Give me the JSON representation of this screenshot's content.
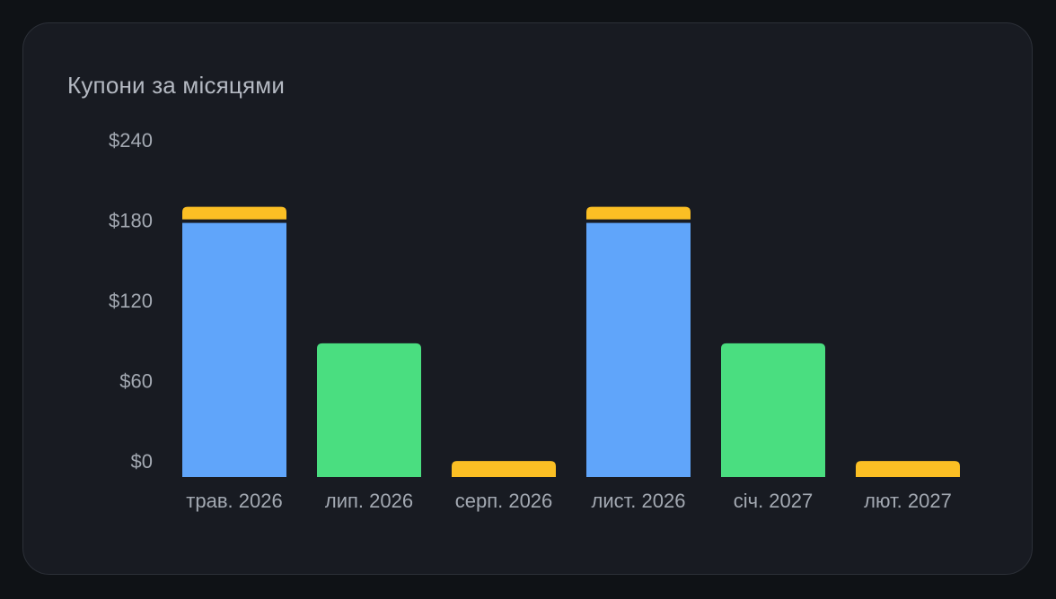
{
  "card": {
    "title": "Купони за місяцями"
  },
  "colors": {
    "background": "#0f1216",
    "card": "#181b22",
    "series_blue": "#60a5fa",
    "series_green": "#4ade80",
    "series_yellow": "#fbbf24",
    "text": "#a3a9b2"
  },
  "chart_data": {
    "type": "bar",
    "stacked": true,
    "title": "Купони за місяцями",
    "categories": [
      "трав. 2026",
      "лип. 2026",
      "серп. 2026",
      "лист. 2026",
      "січ. 2027",
      "лют. 2027"
    ],
    "series": [
      {
        "color": "#60a5fa",
        "values": [
          190,
          0,
          0,
          190,
          0,
          0
        ]
      },
      {
        "color": "#4ade80",
        "values": [
          0,
          100,
          0,
          0,
          100,
          0
        ]
      },
      {
        "color": "#fbbf24",
        "values": [
          12,
          0,
          12,
          12,
          0,
          12
        ]
      }
    ],
    "ylim": [
      0,
      240
    ],
    "yticks": [
      0,
      60,
      120,
      180,
      240
    ],
    "ytick_labels": [
      "$0",
      "$60",
      "$120",
      "$180",
      "$240"
    ],
    "grid": false,
    "legend": "none"
  }
}
